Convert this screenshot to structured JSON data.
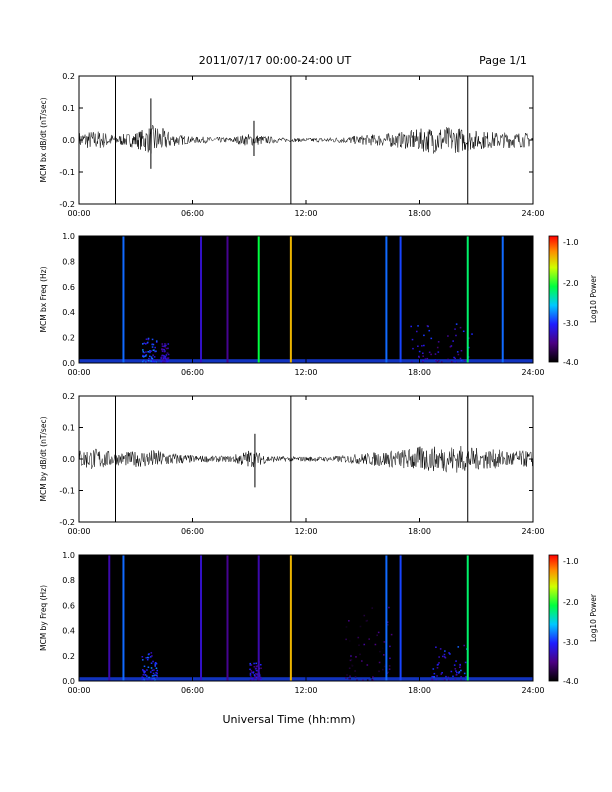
{
  "header": {
    "title": "2011/07/17  00:00-24:00 UT",
    "page": "Page 1/1"
  },
  "xlabel": "Universal Time (hh:mm)",
  "colorbar_label": "Log10 Power",
  "colorbar_ticks": [
    "-1.0",
    "-2.0",
    "-3.0",
    "-4.0"
  ],
  "colors": {
    "background": "#ffffff",
    "spectrogram_bg": "#000000"
  },
  "chart_data": [
    {
      "type": "line",
      "ylabel": "MCM bx dB/dt (nT/sec)",
      "xlim": [
        0,
        24
      ],
      "ylim": [
        -0.2,
        0.2
      ],
      "xticks": [
        "00:00",
        "06:00",
        "12:00",
        "18:00",
        "24:00"
      ],
      "yticks": [
        "0.2",
        "0.1",
        "0.0",
        "-0.1",
        "-0.2"
      ],
      "envelope_hours": [
        0,
        1,
        2,
        3,
        4,
        5,
        6,
        7,
        8,
        9,
        10,
        11,
        12,
        13,
        14,
        15,
        16,
        17,
        18,
        19,
        20,
        21,
        22,
        23,
        24
      ],
      "envelope_amplitude": [
        0.025,
        0.03,
        0.015,
        0.025,
        0.05,
        0.02,
        0.01,
        0.01,
        0.008,
        0.02,
        0.012,
        0.006,
        0.006,
        0.008,
        0.01,
        0.015,
        0.02,
        0.025,
        0.035,
        0.045,
        0.04,
        0.03,
        0.025,
        0.025,
        0.022
      ],
      "spikes": [
        {
          "x": 1.93,
          "ymin": -0.2,
          "ymax": 0.2
        },
        {
          "x": 11.2,
          "ymin": -0.2,
          "ymax": 0.2
        },
        {
          "x": 20.55,
          "ymin": -0.2,
          "ymax": 0.2
        },
        {
          "x": 3.8,
          "ymin": -0.09,
          "ymax": 0.13
        },
        {
          "x": 9.25,
          "ymin": -0.05,
          "ymax": 0.06
        }
      ]
    },
    {
      "type": "heatmap",
      "ylabel": "MCM bx Freq (Hz)",
      "xlim": [
        0,
        24
      ],
      "ylim": [
        0,
        1
      ],
      "color_range": [
        -4.0,
        -1.0
      ],
      "xticks": [
        "00:00",
        "06:00",
        "12:00",
        "18:00",
        "24:00"
      ],
      "yticks": [
        "1.0",
        "0.8",
        "0.6",
        "0.4",
        "0.2",
        "0.0"
      ],
      "vertical_lines": [
        {
          "x": 2.35,
          "level": -2.9
        },
        {
          "x": 6.45,
          "level": -3.3
        },
        {
          "x": 7.85,
          "level": -3.5
        },
        {
          "x": 9.5,
          "level": -2.2
        },
        {
          "x": 11.2,
          "level": -1.5
        },
        {
          "x": 16.25,
          "level": -2.9
        },
        {
          "x": 17.0,
          "level": -3.0
        },
        {
          "x": 20.55,
          "level": -2.3
        },
        {
          "x": 22.4,
          "level": -2.9
        }
      ],
      "activity_patches": [
        {
          "x0": 3.3,
          "x1": 4.1,
          "fmax": 0.2,
          "level": -3.1
        },
        {
          "x0": 4.3,
          "x1": 4.7,
          "fmax": 0.15,
          "level": -3.4
        },
        {
          "x0": 17.5,
          "x1": 20.8,
          "fmax": 0.3,
          "level": -3.3
        }
      ]
    },
    {
      "type": "line",
      "ylabel": "MCM by dB/dt (nT/sec)",
      "xlim": [
        0,
        24
      ],
      "ylim": [
        -0.2,
        0.2
      ],
      "xticks": [
        "00:00",
        "06:00",
        "12:00",
        "18:00",
        "24:00"
      ],
      "yticks": [
        "0.2",
        "0.1",
        "0.0",
        "-0.1",
        "-0.2"
      ],
      "envelope_hours": [
        0,
        1,
        2,
        3,
        4,
        5,
        6,
        7,
        8,
        9,
        10,
        11,
        12,
        13,
        14,
        15,
        16,
        17,
        18,
        19,
        20,
        21,
        22,
        23,
        24
      ],
      "envelope_amplitude": [
        0.03,
        0.035,
        0.02,
        0.025,
        0.03,
        0.02,
        0.012,
        0.01,
        0.01,
        0.03,
        0.012,
        0.008,
        0.008,
        0.008,
        0.012,
        0.018,
        0.025,
        0.03,
        0.04,
        0.04,
        0.045,
        0.035,
        0.03,
        0.028,
        0.025
      ],
      "spikes": [
        {
          "x": 1.93,
          "ymin": -0.2,
          "ymax": 0.2
        },
        {
          "x": 11.2,
          "ymin": -0.2,
          "ymax": 0.2
        },
        {
          "x": 20.55,
          "ymin": -0.2,
          "ymax": 0.2
        },
        {
          "x": 9.3,
          "ymin": -0.09,
          "ymax": 0.08
        }
      ]
    },
    {
      "type": "heatmap",
      "ylabel": "MCM by Freq (Hz)",
      "xlim": [
        0,
        24
      ],
      "ylim": [
        0,
        1
      ],
      "color_range": [
        -4.0,
        -1.0
      ],
      "xticks": [
        "00:00",
        "06:00",
        "12:00",
        "18:00",
        "24:00"
      ],
      "yticks": [
        "1.0",
        "0.8",
        "0.6",
        "0.4",
        "0.2",
        "0.0"
      ],
      "vertical_lines": [
        {
          "x": 1.6,
          "level": -3.4
        },
        {
          "x": 2.35,
          "level": -2.9
        },
        {
          "x": 6.45,
          "level": -3.3
        },
        {
          "x": 7.85,
          "level": -3.5
        },
        {
          "x": 9.5,
          "level": -3.4
        },
        {
          "x": 11.2,
          "level": -1.5
        },
        {
          "x": 16.25,
          "level": -2.9
        },
        {
          "x": 17.0,
          "level": -3.0
        },
        {
          "x": 20.55,
          "level": -2.3
        }
      ],
      "activity_patches": [
        {
          "x0": 3.3,
          "x1": 4.1,
          "fmax": 0.22,
          "level": -3.1
        },
        {
          "x0": 9.0,
          "x1": 9.6,
          "fmax": 0.15,
          "level": -3.3
        },
        {
          "x0": 18.5,
          "x1": 20.5,
          "fmax": 0.28,
          "level": -3.2
        },
        {
          "x0": 14.0,
          "x1": 16.5,
          "fmax": 0.6,
          "level": -3.7
        }
      ]
    }
  ]
}
